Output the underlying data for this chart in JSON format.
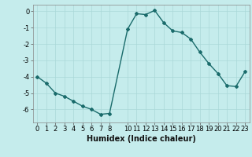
{
  "x": [
    0,
    1,
    2,
    3,
    4,
    5,
    6,
    7,
    8,
    10,
    11,
    12,
    13,
    14,
    15,
    16,
    17,
    18,
    19,
    20,
    21,
    22,
    23
  ],
  "y": [
    -4.0,
    -4.4,
    -5.0,
    -5.2,
    -5.5,
    -5.8,
    -6.0,
    -6.3,
    -6.25,
    -1.1,
    -0.15,
    -0.2,
    0.05,
    -0.7,
    -1.2,
    -1.3,
    -1.7,
    -2.5,
    -3.2,
    -3.8,
    -4.55,
    -4.6,
    -3.7
  ],
  "line_color": "#1a6b6b",
  "marker": "D",
  "marker_size": 2.0,
  "bg_color": "#c5ecec",
  "grid_color": "#aad8d8",
  "xlabel": "Humidex (Indice chaleur)",
  "xlim": [
    -0.5,
    23.5
  ],
  "ylim": [
    -6.8,
    0.4
  ],
  "yticks": [
    0,
    -1,
    -2,
    -3,
    -4,
    -5,
    -6
  ],
  "xticks": [
    0,
    1,
    2,
    3,
    4,
    5,
    6,
    7,
    8,
    10,
    11,
    12,
    13,
    14,
    15,
    16,
    17,
    18,
    19,
    20,
    21,
    22,
    23
  ],
  "xlabel_fontsize": 7,
  "tick_fontsize": 6,
  "line_width": 1.0
}
